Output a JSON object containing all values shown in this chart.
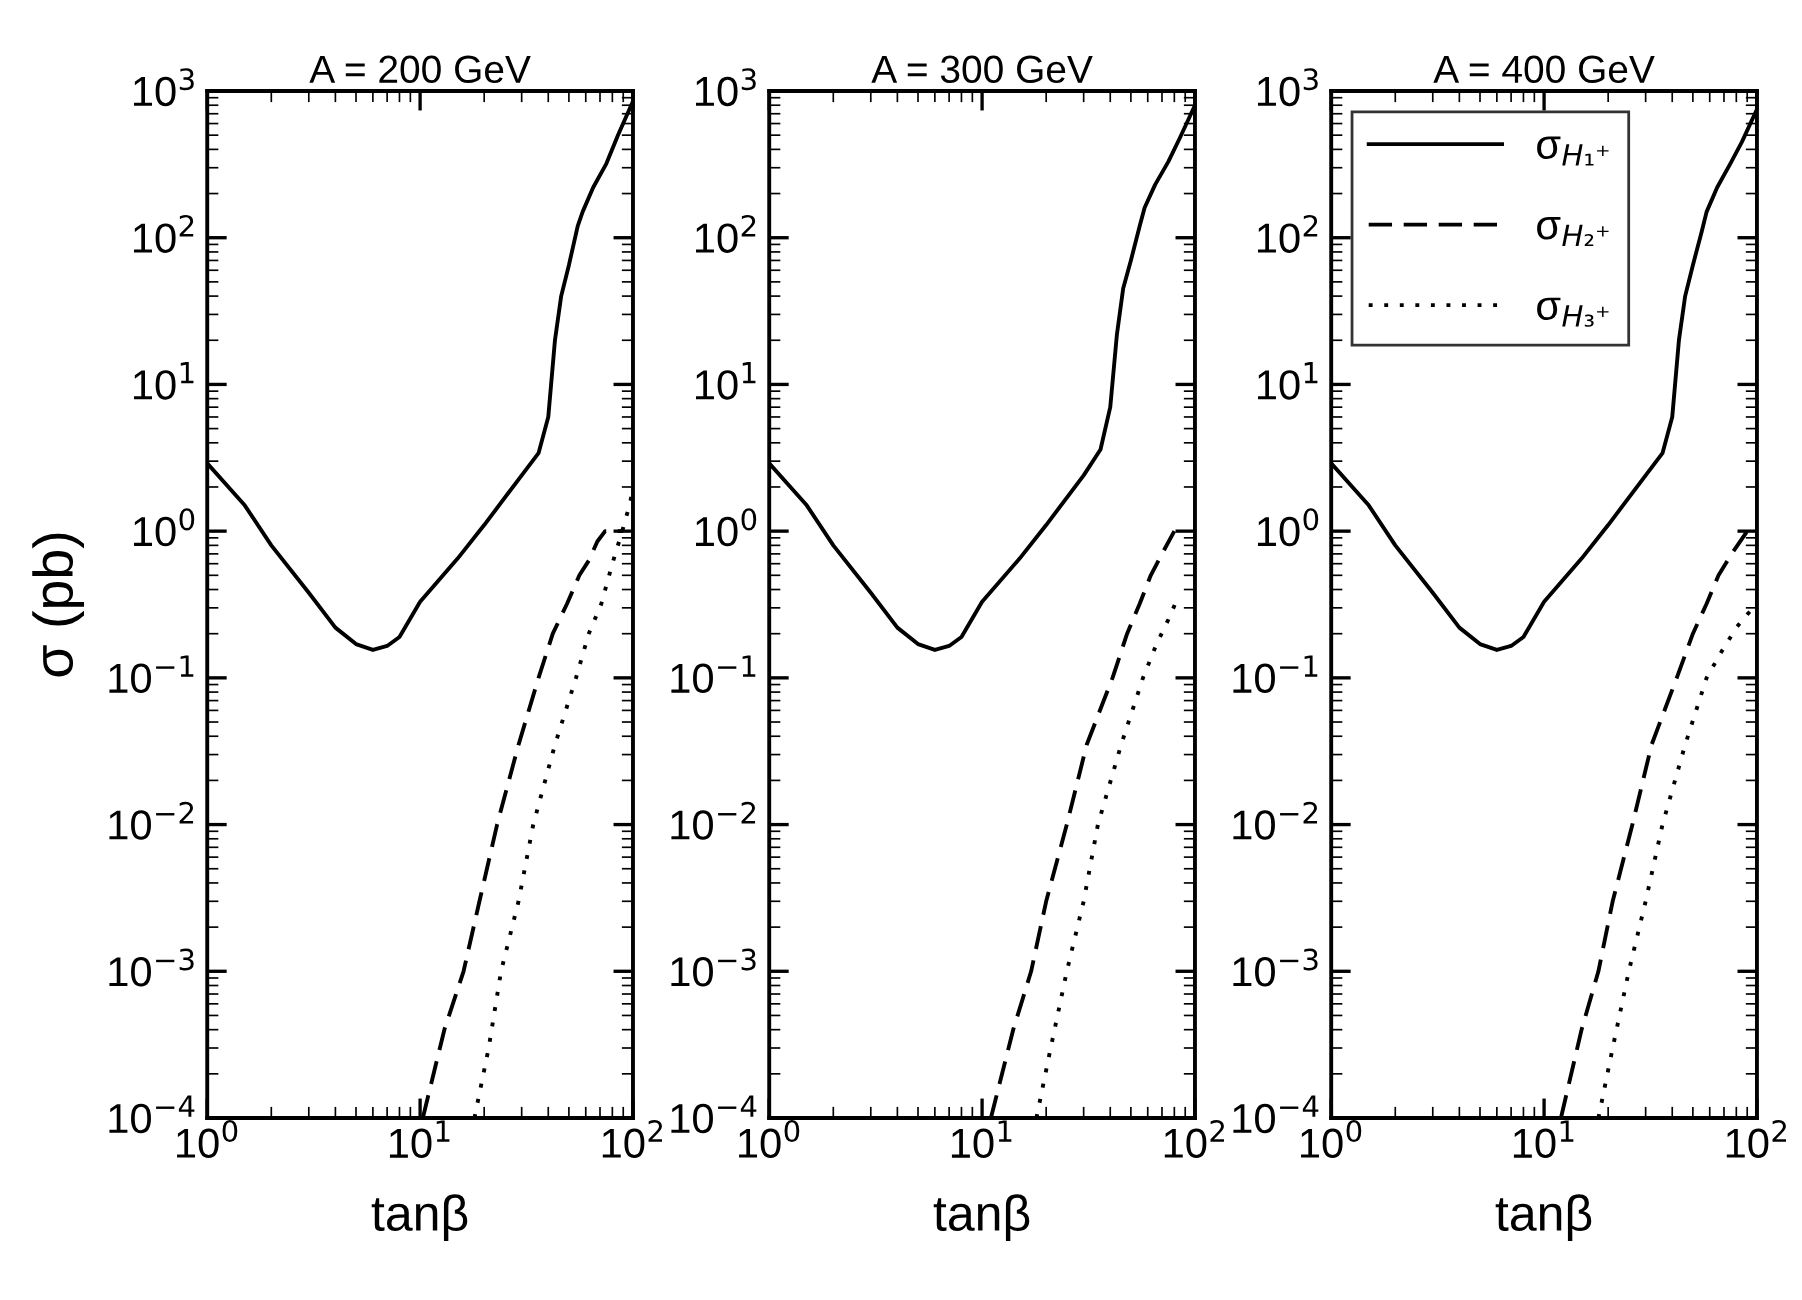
{
  "chart_data": [
    {
      "type": "line",
      "title": "A = 200 GeV",
      "xlabel": "tanβ",
      "ylabel": "σ (pb)",
      "log": "xy",
      "xlim": [
        1,
        100
      ],
      "ylim": [
        0.0001,
        1000
      ],
      "xticks": [
        {
          "value": 1,
          "label": "10$^{0}$"
        },
        {
          "value": 10,
          "label": "10$^{1}$"
        },
        {
          "value": 100,
          "label": "10$^{2}$"
        }
      ],
      "yticks": [
        {
          "value": 0.0001,
          "label": "10$^{−4}$"
        },
        {
          "value": 0.001,
          "label": "10$^{−3}$"
        },
        {
          "value": 0.01,
          "label": "10$^{−2}$"
        },
        {
          "value": 0.1,
          "label": "10$^{−1}$"
        },
        {
          "value": 1,
          "label": "10$^{0}$"
        },
        {
          "value": 10,
          "label": "10$^{1}$"
        },
        {
          "value": 100,
          "label": "10$^{2}$"
        },
        {
          "value": 1000,
          "label": "10$^{3}$"
        }
      ],
      "series": [
        {
          "color": "#000000",
          "line_style": "solid",
          "x": [
            1,
            1.5,
            2,
            3,
            4,
            5,
            6,
            7,
            8,
            10,
            15,
            20,
            30,
            36,
            40,
            43,
            46,
            50,
            55,
            58,
            65,
            75,
            85,
            100
          ],
          "values": [
            2.9,
            1.5,
            0.8,
            0.38,
            0.22,
            0.17,
            0.155,
            0.165,
            0.19,
            0.33,
            0.65,
            1.1,
            2.4,
            3.4,
            6,
            20,
            40,
            65,
            120,
            150,
            220,
            320,
            500,
            850
          ]
        },
        {
          "color": "#000000",
          "line_style": "dashed",
          "x": [
            10.3,
            13,
            16,
            19,
            23,
            29,
            36,
            42,
            49,
            56,
            62,
            68,
            74,
            82,
            90
          ],
          "values": [
            0.0001,
            0.0004,
            0.001,
            0.003,
            0.01,
            0.035,
            0.1,
            0.2,
            0.32,
            0.5,
            0.63,
            0.85,
            1.0,
            1.0,
            1.0
          ]
        },
        {
          "color": "#000000",
          "line_style": "dotted",
          "x": [
            18,
            21,
            24,
            29,
            34,
            43,
            54,
            62,
            71,
            80,
            89,
            95,
            100
          ],
          "values": [
            0.0001,
            0.0003,
            0.001,
            0.003,
            0.01,
            0.035,
            0.1,
            0.2,
            0.32,
            0.6,
            1.0,
            1.4,
            1.9
          ]
        }
      ]
    },
    {
      "type": "line",
      "title": "A = 300 GeV",
      "xlabel": "tanβ",
      "log": "xy",
      "xlim": [
        1,
        100
      ],
      "ylim": [
        0.0001,
        1000
      ],
      "xticks": [
        {
          "value": 1,
          "label": "10$^{0}$"
        },
        {
          "value": 10,
          "label": "10$^{1}$"
        },
        {
          "value": 100,
          "label": "10$^{2}$"
        }
      ],
      "yticks": [
        {
          "value": 0.0001,
          "label": "10$^{−4}$"
        },
        {
          "value": 0.001,
          "label": "10$^{−3}$"
        },
        {
          "value": 0.01,
          "label": "10$^{−2}$"
        },
        {
          "value": 0.1,
          "label": "10$^{−1}$"
        },
        {
          "value": 1,
          "label": "10$^{0}$"
        },
        {
          "value": 10,
          "label": "10$^{1}$"
        },
        {
          "value": 100,
          "label": "10$^{2}$"
        },
        {
          "value": 1000,
          "label": "10$^{3}$"
        }
      ],
      "series": [
        {
          "color": "#000000",
          "line_style": "solid",
          "x": [
            1,
            1.5,
            2,
            3,
            4,
            5,
            6,
            7,
            8,
            10,
            15,
            20,
            30,
            36,
            40,
            43,
            46,
            50,
            55,
            58,
            65,
            75,
            85,
            100
          ],
          "values": [
            2.9,
            1.5,
            0.8,
            0.38,
            0.22,
            0.17,
            0.155,
            0.165,
            0.19,
            0.33,
            0.65,
            1.1,
            2.4,
            3.6,
            7,
            22,
            45,
            70,
            120,
            160,
            230,
            330,
            480,
            800
          ]
        },
        {
          "color": "#000000",
          "line_style": "dashed",
          "x": [
            11,
            14,
            17,
            20,
            25,
            31,
            41,
            48,
            55,
            62,
            70,
            80
          ],
          "values": [
            0.0001,
            0.0004,
            0.001,
            0.003,
            0.01,
            0.035,
            0.1,
            0.2,
            0.32,
            0.5,
            0.7,
            1.0
          ]
        },
        {
          "color": "#000000",
          "line_style": "dotted",
          "x": [
            18,
            21,
            25,
            30,
            35,
            45,
            57,
            66,
            75,
            83
          ],
          "values": [
            0.0001,
            0.0003,
            0.001,
            0.003,
            0.01,
            0.035,
            0.1,
            0.17,
            0.25,
            0.35
          ]
        }
      ]
    },
    {
      "type": "line",
      "title": "A = 400 GeV",
      "xlabel": "tanβ",
      "log": "xy",
      "xlim": [
        1,
        100
      ],
      "ylim": [
        0.0001,
        1000
      ],
      "legend": "top left",
      "xticks": [
        {
          "value": 1,
          "label": "10$^{0}$"
        },
        {
          "value": 10,
          "label": "10$^{1}$"
        },
        {
          "value": 100,
          "label": "10$^{2}$"
        }
      ],
      "yticks": [
        {
          "value": 0.0001,
          "label": "10$^{−4}$"
        },
        {
          "value": 0.001,
          "label": "10$^{−3}$"
        },
        {
          "value": 0.01,
          "label": "10$^{−2}$"
        },
        {
          "value": 0.1,
          "label": "10$^{−1}$"
        },
        {
          "value": 1,
          "label": "10$^{0}$"
        },
        {
          "value": 10,
          "label": "10$^{1}$"
        },
        {
          "value": 100,
          "label": "10$^{2}$"
        },
        {
          "value": 1000,
          "label": "10$^{3}$"
        }
      ],
      "series": [
        {
          "name": "σ$_{H₁⁺}$",
          "color": "#000000",
          "line_style": "solid",
          "x": [
            1,
            1.5,
            2,
            3,
            4,
            5,
            6,
            7,
            8,
            10,
            15,
            20,
            30,
            36,
            40,
            43,
            46,
            50,
            55,
            58,
            65,
            75,
            85,
            100
          ],
          "values": [
            2.9,
            1.5,
            0.8,
            0.38,
            0.22,
            0.17,
            0.155,
            0.165,
            0.19,
            0.33,
            0.65,
            1.1,
            2.4,
            3.4,
            6,
            20,
            40,
            65,
            110,
            150,
            220,
            320,
            450,
            750
          ]
        },
        {
          "name": "σ$_{H₂⁺}$",
          "color": "#000000",
          "line_style": "dashed",
          "x": [
            12,
            15,
            18,
            21,
            26,
            32,
            42,
            50,
            58,
            66,
            76,
            90
          ],
          "values": [
            0.0001,
            0.0004,
            0.001,
            0.003,
            0.01,
            0.035,
            0.1,
            0.2,
            0.32,
            0.5,
            0.7,
            1.0
          ]
        },
        {
          "name": "σ$_{H₃⁺}$",
          "color": "#000000",
          "line_style": "dotted",
          "x": [
            18,
            21,
            25,
            30,
            36,
            46,
            58,
            68,
            80,
            90,
            100
          ],
          "values": [
            0.0001,
            0.0003,
            0.001,
            0.003,
            0.01,
            0.035,
            0.1,
            0.15,
            0.22,
            0.27,
            0.32
          ]
        }
      ]
    }
  ]
}
